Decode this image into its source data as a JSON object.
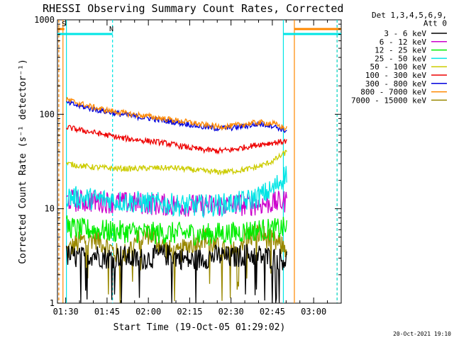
{
  "chart_data": {
    "type": "line",
    "title": "RHESSI Observing Summary Count Rates, Corrected",
    "xlabel": "Start Time (19-Oct-05 01:29:02)",
    "ylabel": "Corrected Count Rate (s⁻¹ detector⁻¹)",
    "yscale": "log",
    "ylim": [
      1,
      1000
    ],
    "xlim": [
      "01:27",
      "03:10"
    ],
    "x_ticks": [
      "01:30",
      "01:45",
      "02:00",
      "02:15",
      "02:30",
      "02:45",
      "03:00"
    ],
    "y_ticks": [
      "1",
      "10",
      "100",
      "1000"
    ],
    "legend_position": "right",
    "legend_header": [
      "Det 1,3,4,5,6,9,",
      "Att 0"
    ],
    "x_minutes": [
      0,
      5,
      10,
      15,
      20,
      25,
      30,
      35,
      40,
      45,
      50,
      55,
      60,
      65,
      70,
      75,
      80
    ],
    "series": [
      {
        "name": "3 - 6 keV",
        "color": "#000000",
        "values": [
          3.2,
          3.0,
          3.3,
          3.0,
          3.2,
          2.9,
          3.0,
          3.3,
          3.1,
          2.8,
          3.0,
          3.2,
          3.0,
          3.3,
          3.2,
          3.0,
          2.9
        ]
      },
      {
        "name": "6 - 12 keV",
        "color": "#cc00cc",
        "values": [
          12.5,
          12.0,
          12.0,
          11.8,
          11.5,
          11.5,
          11.3,
          11.0,
          11.0,
          10.8,
          10.8,
          10.8,
          11.0,
          11.0,
          11.2,
          11.5,
          12.0
        ]
      },
      {
        "name": "12 - 25 keV",
        "color": "#00ee00",
        "values": [
          6.5,
          6.0,
          6.0,
          5.8,
          5.7,
          5.7,
          5.5,
          5.5,
          5.5,
          5.5,
          5.3,
          5.5,
          5.5,
          5.8,
          6.0,
          6.0,
          6.3
        ]
      },
      {
        "name": "25 - 50 keV",
        "color": "#00e5e5",
        "values": [
          13.5,
          13.0,
          12.7,
          12.5,
          12.0,
          11.8,
          11.5,
          11.3,
          11.0,
          10.8,
          10.8,
          11.0,
          11.3,
          12.0,
          13.5,
          16.0,
          24.0
        ]
      },
      {
        "name": "50 - 100 keV",
        "color": "#cccc00",
        "values": [
          30.0,
          28.5,
          27.5,
          27.0,
          26.5,
          26.5,
          27.0,
          27.0,
          27.0,
          26.0,
          25.0,
          24.5,
          25.0,
          26.0,
          28.0,
          32.0,
          40.0
        ]
      },
      {
        "name": "100 - 300 keV",
        "color": "#ee0000",
        "values": [
          73.0,
          68.0,
          64.0,
          60.0,
          56.0,
          54.0,
          52.0,
          50.0,
          47.0,
          44.0,
          42.0,
          41.0,
          42.0,
          45.0,
          48.0,
          50.0,
          52.0
        ]
      },
      {
        "name": "300 - 800 keV",
        "color": "#0000dd",
        "values": [
          133.0,
          122.0,
          113.0,
          106.0,
          100.0,
          95.0,
          91.0,
          86.0,
          82.0,
          78.0,
          73.0,
          71.0,
          72.0,
          75.0,
          79.0,
          76.0,
          66.0
        ]
      },
      {
        "name": "800 - 7000 keV",
        "color": "#ff8800",
        "values": [
          143.0,
          130.0,
          118.0,
          110.0,
          104.0,
          99.0,
          95.0,
          90.0,
          86.0,
          82.0,
          77.0,
          74.0,
          75.0,
          79.0,
          82.0,
          80.0,
          70.0
        ]
      },
      {
        "name": "7000 - 15000 keV",
        "color": "#998800",
        "values": [
          3.5,
          4.5,
          5.0,
          4.0,
          3.0,
          4.5,
          5.5,
          4.0,
          3.2,
          4.2,
          5.0,
          3.8,
          3.3,
          5.0,
          5.5,
          4.5,
          3.8
        ]
      }
    ],
    "flag_bars": [
      {
        "label": "S",
        "color": "#ff8800",
        "text_color": "#cc6600",
        "start": "01:27",
        "end": "01:29:30",
        "level": 1
      },
      {
        "label": "N",
        "color": "#00e5e5",
        "text_color": "#00aaaa",
        "start": "01:27",
        "end": "01:47",
        "level": 2
      },
      {
        "label": "",
        "color": "#00e5e5",
        "text_color": "#00aaaa",
        "start": "02:49",
        "end": "03:10",
        "level": 2
      },
      {
        "label": "",
        "color": "#ff8800",
        "text_color": "#cc6600",
        "start": "02:53",
        "end": "03:10",
        "level": 1
      }
    ],
    "vlines": [
      {
        "time": "01:27:30",
        "color": "#ff8800",
        "dashed": true
      },
      {
        "time": "01:29:00",
        "color": "#ff8800",
        "dashed": false
      },
      {
        "time": "01:30:15",
        "color": "#00e5e5",
        "dashed": false
      },
      {
        "time": "01:47:00",
        "color": "#00e5e5",
        "dashed": true
      },
      {
        "time": "02:49:00",
        "color": "#00e5e5",
        "dashed": false
      },
      {
        "time": "02:53:00",
        "color": "#ff8800",
        "dashed": false
      },
      {
        "time": "03:08:30",
        "color": "#ff8800",
        "dashed": true
      },
      {
        "time": "03:08:30",
        "color": "#00e5e5",
        "dashed": true
      }
    ],
    "timestamp": "20-Oct-2021 19:10"
  }
}
